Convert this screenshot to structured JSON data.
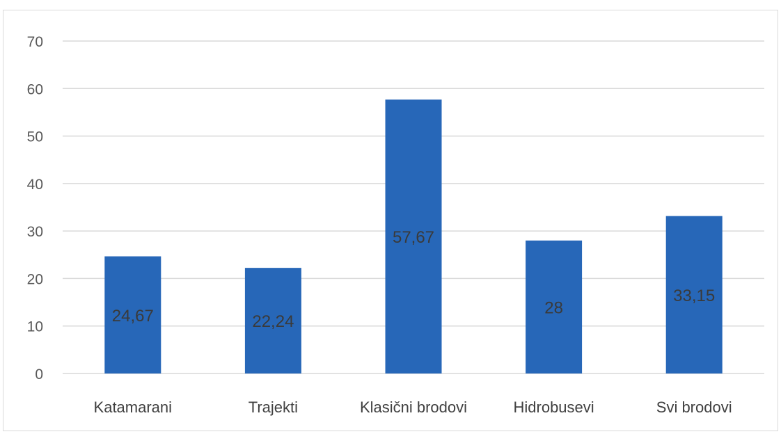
{
  "chart_data": {
    "type": "bar",
    "title": "",
    "xlabel": "",
    "ylabel": "",
    "categories": [
      "Katamarani",
      "Trajekti",
      "Klasični brodovi",
      "Hidrobusevi",
      "Svi brodovi"
    ],
    "values": [
      24.67,
      22.24,
      57.67,
      28,
      33.15
    ],
    "data_labels": [
      "24,67",
      "22,24",
      "57,67",
      "28",
      "33,15"
    ],
    "ylim": [
      0,
      70
    ],
    "yticks": [
      "0",
      "10",
      "20",
      "30",
      "40",
      "50",
      "60",
      "70"
    ],
    "grid": true,
    "legend": "none",
    "bar_color": "#2767b8",
    "grid_color": "#d9d9d9"
  }
}
